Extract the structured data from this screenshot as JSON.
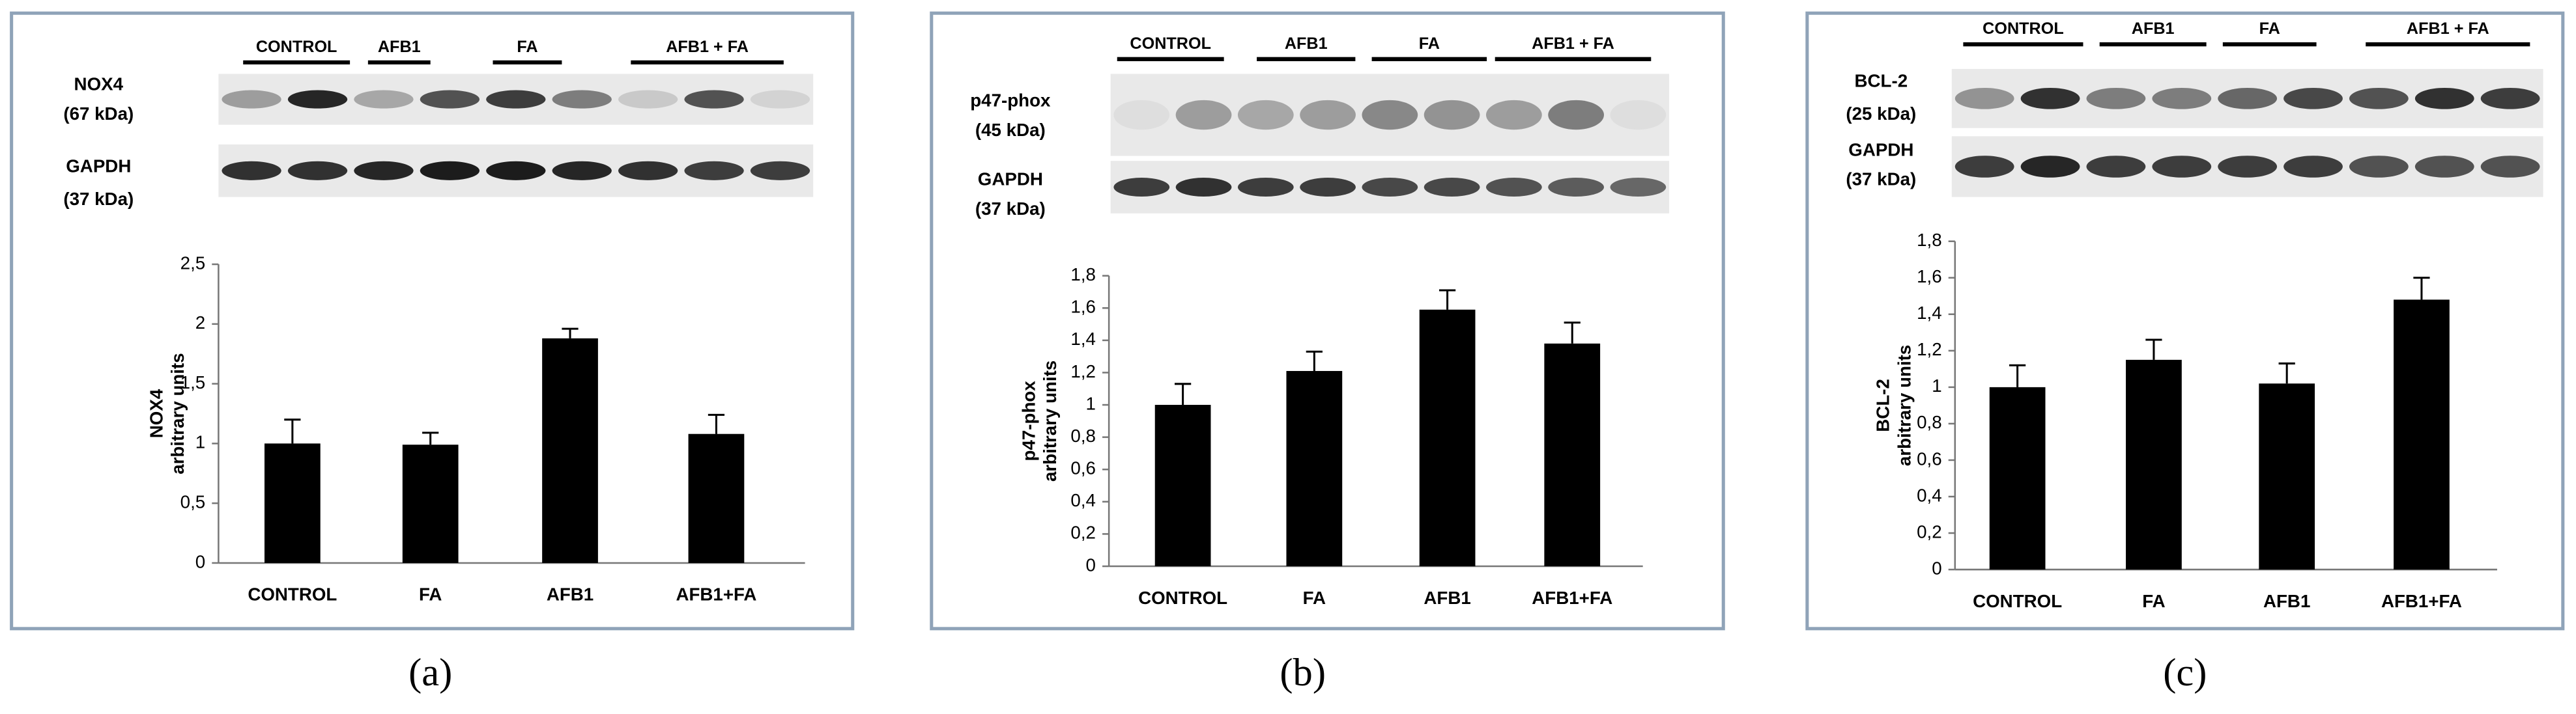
{
  "chart_data": [
    {
      "type": "bar",
      "panel_label": "(a)",
      "blot_groups": [
        "CONTROL",
        "AFB1",
        "FA",
        "AFB1 + FA"
      ],
      "blot_rows": [
        [
          "NOX4",
          "(67 kDa)"
        ],
        [
          "GAPDH",
          "(37 kDa)"
        ]
      ],
      "ylabel": [
        "NOX4",
        "arbitrary units"
      ],
      "categories": [
        "CONTROL",
        "FA",
        "AFB1",
        "AFB1+FA"
      ],
      "values": [
        1.0,
        0.99,
        1.88,
        1.08
      ],
      "errors": [
        0.2,
        0.1,
        0.08,
        0.16
      ],
      "color": "#000000",
      "ylim": [
        0,
        2.5
      ],
      "yticks": [
        0,
        {
          "value": 0.5,
          "label": "0,5"
        },
        1,
        {
          "value": 1.5,
          "label": "1,5"
        },
        2,
        {
          "value": 2.5,
          "label": "2,5"
        }
      ]
    },
    {
      "type": "bar",
      "panel_label": "(b)",
      "blot_groups": [
        "CONTROL",
        "AFB1",
        "FA",
        "AFB1 + FA"
      ],
      "blot_rows": [
        [
          "p47-phox",
          "(45 kDa)"
        ],
        [
          "GAPDH",
          "(37 kDa)"
        ]
      ],
      "ylabel": [
        "p47-phox",
        "arbitrary units"
      ],
      "categories": [
        "CONTROL",
        "FA",
        "AFB1",
        "AFB1+FA"
      ],
      "values": [
        1.0,
        1.21,
        1.59,
        1.38
      ],
      "errors": [
        0.13,
        0.12,
        0.12,
        0.13
      ],
      "color": "#000000",
      "ylim": [
        0,
        1.8
      ],
      "yticks": [
        0,
        {
          "value": 0.2,
          "label": "0,2"
        },
        {
          "value": 0.4,
          "label": "0,4"
        },
        {
          "value": 0.6,
          "label": "0,6"
        },
        {
          "value": 0.8,
          "label": "0,8"
        },
        1,
        {
          "value": 1.2,
          "label": "1,2"
        },
        {
          "value": 1.4,
          "label": "1,4"
        },
        {
          "value": 1.6,
          "label": "1,6"
        },
        {
          "value": 1.8,
          "label": "1,8"
        }
      ]
    },
    {
      "type": "bar",
      "panel_label": "(c)",
      "blot_groups": [
        "CONTROL",
        "AFB1",
        "FA",
        "AFB1 + FA"
      ],
      "blot_rows": [
        [
          "BCL-2",
          "(25 kDa)"
        ],
        [
          "GAPDH",
          "(37 kDa)"
        ]
      ],
      "ylabel": [
        "BCL-2",
        "arbitrary units"
      ],
      "categories": [
        "CONTROL",
        "FA",
        "AFB1",
        "AFB1+FA"
      ],
      "values": [
        1.0,
        1.15,
        1.02,
        1.48
      ],
      "errors": [
        0.12,
        0.11,
        0.11,
        0.12
      ],
      "color": "#000000",
      "ylim": [
        0,
        1.8
      ],
      "yticks": [
        0,
        {
          "value": 0.2,
          "label": "0,2"
        },
        {
          "value": 0.4,
          "label": "0,4"
        },
        {
          "value": 0.6,
          "label": "0,6"
        },
        {
          "value": 0.8,
          "label": "0,8"
        },
        1,
        {
          "value": 1.2,
          "label": "1,2"
        },
        {
          "value": 1.4,
          "label": "1,4"
        },
        {
          "value": 1.6,
          "label": "1,6"
        },
        {
          "value": 1.8,
          "label": "1,8"
        }
      ]
    }
  ]
}
